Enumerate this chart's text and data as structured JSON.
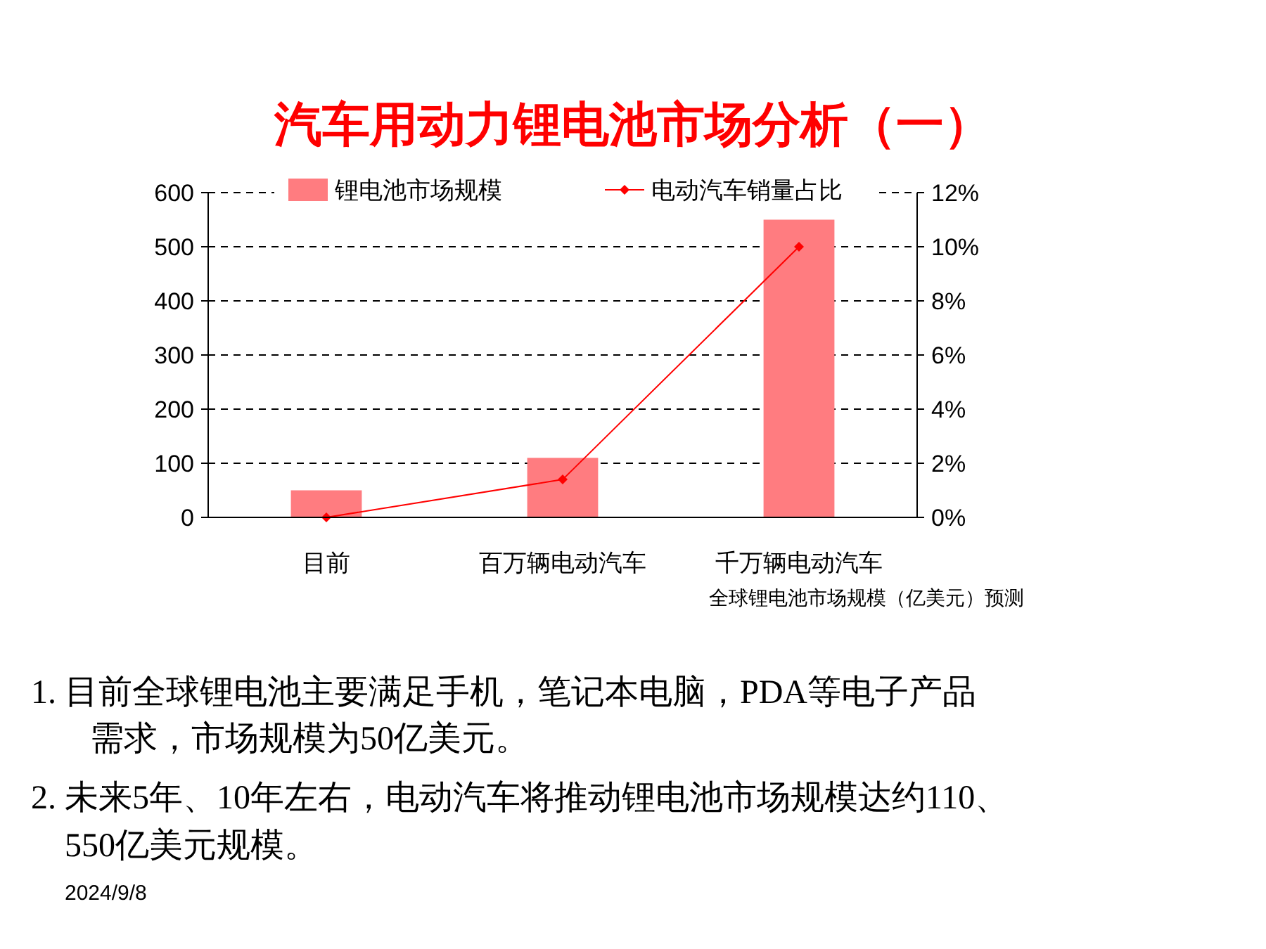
{
  "chart_data": {
    "type": "bar",
    "title": "汽车用动力锂电池市场分析（一）",
    "categories": [
      "目前",
      "百万辆电动汽车",
      "千万辆电动汽车"
    ],
    "series": [
      {
        "name": "锂电池市场规模",
        "color": "#ff7c80",
        "values": [
          50,
          110,
          550
        ]
      },
      {
        "name": "电动汽车销量占比",
        "type": "line",
        "axis": "y2",
        "color": "#ff0000",
        "values": [
          0,
          1.4,
          10
        ]
      }
    ],
    "ylim": [
      0,
      600
    ],
    "yticks": [
      0,
      100,
      200,
      300,
      400,
      500,
      600
    ],
    "y2lim": [
      0,
      12
    ],
    "y2ticks": [
      {
        "value": 0,
        "label": "0%"
      },
      {
        "value": 2,
        "label": "2%"
      },
      {
        "value": 4,
        "label": "4%"
      },
      {
        "value": 6,
        "label": "6%"
      },
      {
        "value": 8,
        "label": "8%"
      },
      {
        "value": 10,
        "label": "10%"
      },
      {
        "value": 12,
        "label": "12%"
      }
    ],
    "grid": "y",
    "legend": "top",
    "marker": "diamond",
    "line_style": "solid",
    "annotations": [
      "全球锂电池市场规模（亿美元）预测",
      "1. 目前全球锂电池主要满足手机，笔记本电脑，PDA等电子产品",
      "需求，市场规模为50亿美元。",
      "2. 未来5年、10年左右，电动汽车将推动锂电池市场规模达约110、",
      "550亿美元规模。",
      "2024/9/8"
    ]
  }
}
